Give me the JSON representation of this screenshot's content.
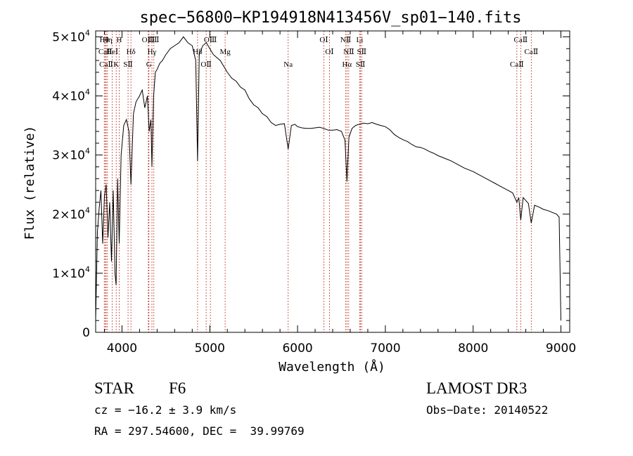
{
  "chart_data": {
    "type": "line",
    "title": "spec−56800−KP194918N413456V_sp01−140.fits",
    "xlabel": "Wavelength (Å)",
    "ylabel": "Flux (relative)",
    "xlim": [
      3700,
      9100
    ],
    "ylim": [
      0,
      51000
    ],
    "x_ticks": [
      4000,
      5000,
      6000,
      7000,
      8000,
      9000
    ],
    "x_tick_labels": [
      "4000",
      "5000",
      "6000",
      "7000",
      "8000",
      "9000"
    ],
    "y_ticks": [
      {
        "value": 0,
        "mantissa": "0",
        "exponent": ""
      },
      {
        "value": 10000,
        "mantissa": "1×10",
        "exponent": "4"
      },
      {
        "value": 20000,
        "mantissa": "2×10",
        "exponent": "4"
      },
      {
        "value": 30000,
        "mantissa": "3×10",
        "exponent": "4"
      },
      {
        "value": 40000,
        "mantissa": "4×10",
        "exponent": "4"
      },
      {
        "value": 50000,
        "mantissa": "5×10",
        "exponent": "4"
      }
    ],
    "series": [
      {
        "name": "flux",
        "x": [
          3700,
          3720,
          3740,
          3760,
          3780,
          3800,
          3820,
          3840,
          3860,
          3880,
          3900,
          3920,
          3933,
          3950,
          3968,
          3990,
          4020,
          4050,
          4080,
          4102,
          4130,
          4160,
          4200,
          4230,
          4260,
          4290,
          4310,
          4330,
          4341,
          4360,
          4380,
          4400,
          4430,
          4460,
          4500,
          4550,
          4600,
          4650,
          4700,
          4750,
          4800,
          4840,
          4861,
          4880,
          4920,
          4960,
          5000,
          5040,
          5080,
          5120,
          5160,
          5200,
          5250,
          5300,
          5350,
          5400,
          5450,
          5500,
          5550,
          5600,
          5650,
          5700,
          5750,
          5800,
          5850,
          5893,
          5930,
          5970,
          6000,
          6050,
          6100,
          6150,
          6200,
          6250,
          6300,
          6350,
          6400,
          6450,
          6500,
          6540,
          6563,
          6585,
          6620,
          6660,
          6700,
          6750,
          6800,
          6850,
          6900,
          6950,
          7000,
          7050,
          7100,
          7150,
          7200,
          7250,
          7300,
          7350,
          7400,
          7450,
          7500,
          7550,
          7600,
          7650,
          7700,
          7750,
          7800,
          7850,
          7900,
          7950,
          8000,
          8050,
          8100,
          8150,
          8200,
          8250,
          8300,
          8350,
          8400,
          8450,
          8498,
          8520,
          8542,
          8570,
          8600,
          8630,
          8662,
          8700,
          8750,
          8800,
          8850,
          8900,
          8950,
          8980,
          9000
        ],
        "y": [
          2000,
          17000,
          21000,
          24000,
          15000,
          23000,
          25000,
          16000,
          22000,
          12000,
          24000,
          10000,
          8000,
          26000,
          15000,
          30000,
          35000,
          36000,
          34000,
          25000,
          37000,
          39000,
          40000,
          41000,
          38000,
          40000,
          34000,
          36000,
          28000,
          40000,
          44000,
          44500,
          45500,
          46000,
          47000,
          48000,
          48500,
          49000,
          50000,
          49000,
          48500,
          46000,
          29000,
          47000,
          48500,
          49000,
          48000,
          47000,
          46500,
          46000,
          45000,
          44000,
          43000,
          42500,
          41500,
          41000,
          39500,
          38500,
          38000,
          37000,
          36500,
          35500,
          35000,
          35200,
          35300,
          31000,
          35000,
          35200,
          34800,
          34600,
          34500,
          34500,
          34600,
          34700,
          34500,
          34200,
          34200,
          34300,
          34000,
          32500,
          25500,
          33000,
          34500,
          35000,
          35200,
          35400,
          35300,
          35500,
          35200,
          35000,
          34800,
          34300,
          33500,
          33000,
          32600,
          32300,
          31800,
          31400,
          31300,
          31000,
          30600,
          30300,
          29900,
          29600,
          29300,
          29000,
          28600,
          28200,
          27800,
          27500,
          27200,
          26800,
          26400,
          26000,
          25600,
          25200,
          24800,
          24400,
          24000,
          23600,
          22000,
          22800,
          19000,
          22800,
          22300,
          21800,
          18500,
          21500,
          21200,
          20800,
          20600,
          20300,
          20000,
          19500,
          2000
        ]
      }
    ],
    "line_marks": [
      {
        "label": "Hθ",
        "wavelength": 3798
      },
      {
        "label": "CaⅡ",
        "wavelength": 3810
      },
      {
        "label": "CaⅡ",
        "wavelength": 3820
      },
      {
        "label": "Hη",
        "wavelength": 3835
      },
      {
        "label": "HeⅠ",
        "wavelength": 3889
      },
      {
        "label": "K",
        "wavelength": 3934
      },
      {
        "label": "H",
        "wavelength": 3968
      },
      {
        "label": "Hδ",
        "wavelength": 4102
      },
      {
        "label": "SⅡ",
        "wavelength": 4069
      },
      {
        "label": "OⅢ",
        "wavelength": 4300
      },
      {
        "label": "Hγ",
        "wavelength": 4341
      },
      {
        "label": "G",
        "wavelength": 4307
      },
      {
        "label": "OⅡ",
        "wavelength": 4363
      },
      {
        "label": "Hβ",
        "wavelength": 4861
      },
      {
        "label": "OⅡ",
        "wavelength": 4959
      },
      {
        "label": "OⅢ",
        "wavelength": 5007
      },
      {
        "label": "Mg",
        "wavelength": 5175
      },
      {
        "label": "Na",
        "wavelength": 5893
      },
      {
        "label": "OⅠ",
        "wavelength": 6300
      },
      {
        "label": "OⅠ",
        "wavelength": 6364
      },
      {
        "label": "Hα",
        "wavelength": 6563
      },
      {
        "label": "NⅡ",
        "wavelength": 6548
      },
      {
        "label": "NⅡ",
        "wavelength": 6583
      },
      {
        "label": "SⅡ",
        "wavelength": 6717
      },
      {
        "label": "Li",
        "wavelength": 6708
      },
      {
        "label": "SⅡ",
        "wavelength": 6731
      },
      {
        "label": "CaⅡ",
        "wavelength": 8498
      },
      {
        "label": "CaⅡ",
        "wavelength": 8542
      },
      {
        "label": "CaⅡ",
        "wavelength": 8662
      }
    ]
  },
  "info": {
    "class_label": "STAR",
    "subclass": "F6",
    "survey": "LAMOST DR3",
    "cz": "cz = −16.2 ± 3.9 km/s",
    "obs_date": "Obs−Date: 20140522",
    "coords": "RA = 297.54600, DEC =  39.99769"
  },
  "colors": {
    "spectrum": "#000000",
    "line_marker": "#c0392b",
    "axis": "#000000"
  }
}
